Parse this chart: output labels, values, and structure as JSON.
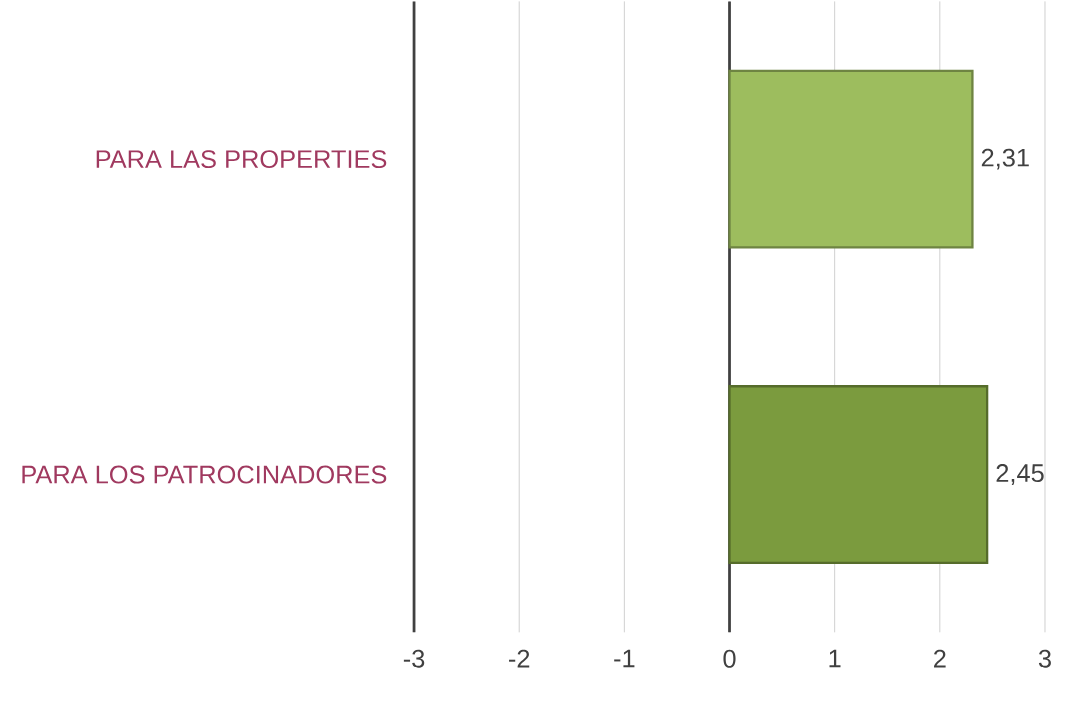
{
  "chart_data": {
    "type": "bar",
    "orientation": "horizontal",
    "categories": [
      "PARA LAS PROPERTIES",
      "PARA LOS PATROCINADORES"
    ],
    "values": [
      2.31,
      2.45
    ],
    "colors": [
      "#9dbd5e",
      "#7b9b3e"
    ],
    "value_labels": [
      "2,31",
      "2,45"
    ],
    "xlim": [
      -3,
      3
    ],
    "xticks": [
      -3,
      -2,
      -1,
      0,
      1,
      2,
      3
    ],
    "grid": "x"
  }
}
